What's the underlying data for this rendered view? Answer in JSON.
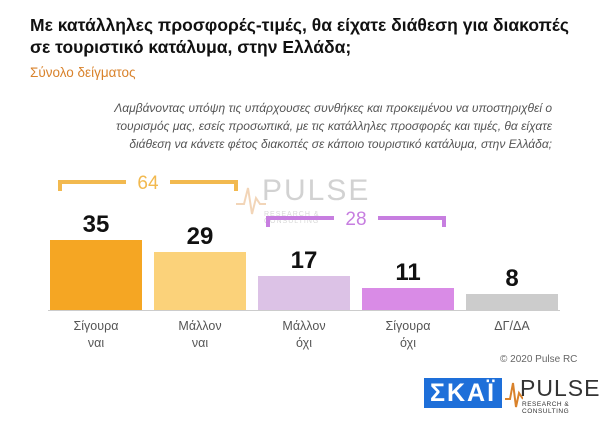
{
  "title": "Με κατάλληλες προσφορές-τιμές, θα είχατε διάθεση για διακοπές σε τουριστικό κατάλυμα, στην Ελλάδα;",
  "subtitle": "Σύνολο δείγματος",
  "question": "Λαμβάνοντας υπόψη τις υπάρχουσες συνθήκες και προκειμένου να υποστηριχθεί ο τουρισμός μας, εσείς προσωπικά, με τις κατάλληλες προσφορές και τιμές, θα είχατε διάθεση να κάνετε φέτος διακοπές σε κάποιο τουριστικό κατάλυμα, στην Ελλάδα;",
  "watermark": {
    "text": "PULSE",
    "sub": "RESEARCH & CONSULTING"
  },
  "copyright": "© 2020 Pulse RC",
  "logos": {
    "skai": "ΣΚΑΪ",
    "pulse": "PULSE",
    "pulse_sub": "RESEARCH & CONSULTING"
  },
  "chart_data": {
    "type": "bar",
    "categories": [
      [
        "Σίγουρα",
        "ναι"
      ],
      [
        "Μάλλον",
        "ναι"
      ],
      [
        "Μάλλον",
        "όχι"
      ],
      [
        "Σίγουρα",
        "όχι"
      ],
      [
        "ΔΓ/ΔΑ"
      ]
    ],
    "values": [
      35,
      29,
      17,
      11,
      8
    ],
    "colors": [
      "#f5a623",
      "#fbd27a",
      "#dcc2e6",
      "#d98be6",
      "#cccccc"
    ],
    "groups": [
      {
        "label": "64",
        "from": 0,
        "to": 1,
        "color": "#f2b94f"
      },
      {
        "label": "28",
        "from": 2,
        "to": 3,
        "color": "#c77ee0"
      }
    ]
  }
}
